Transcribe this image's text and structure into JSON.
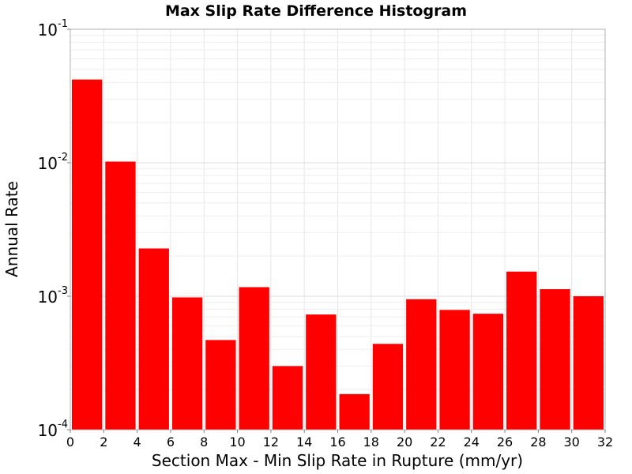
{
  "chart_data": {
    "type": "bar",
    "title": "Max Slip Rate Difference Histogram",
    "xlabel": "Section Max - Min Slip Rate in Rupture (mm/yr)",
    "ylabel": "Annual Rate",
    "xlim": [
      0,
      32
    ],
    "ylim": [
      0.0001,
      0.1
    ],
    "yscale": "log",
    "bin_width": 2,
    "grid": true,
    "xticks": [
      0,
      2,
      4,
      6,
      8,
      10,
      12,
      14,
      16,
      18,
      20,
      22,
      24,
      26,
      28,
      30,
      32
    ],
    "yticks": [
      {
        "base": "10",
        "exp": "-4",
        "value": 0.0001
      },
      {
        "base": "10",
        "exp": "-3",
        "value": 0.001
      },
      {
        "base": "10",
        "exp": "-2",
        "value": 0.01
      },
      {
        "base": "10",
        "exp": "-1",
        "value": 0.1
      }
    ],
    "bar_color": "#ff0000",
    "bars": [
      {
        "x": 1,
        "value": 0.042
      },
      {
        "x": 3,
        "value": 0.0102
      },
      {
        "x": 5,
        "value": 0.00228
      },
      {
        "x": 7,
        "value": 0.00098
      },
      {
        "x": 9,
        "value": 0.00047
      },
      {
        "x": 11,
        "value": 0.00117
      },
      {
        "x": 13,
        "value": 0.0003
      },
      {
        "x": 15,
        "value": 0.00073
      },
      {
        "x": 17,
        "value": 0.000185
      },
      {
        "x": 19,
        "value": 0.00044
      },
      {
        "x": 21,
        "value": 0.00095
      },
      {
        "x": 23,
        "value": 0.00079
      },
      {
        "x": 25,
        "value": 0.00074
      },
      {
        "x": 27,
        "value": 0.00153
      },
      {
        "x": 29,
        "value": 0.00113
      },
      {
        "x": 31,
        "value": 0.001
      }
    ]
  }
}
